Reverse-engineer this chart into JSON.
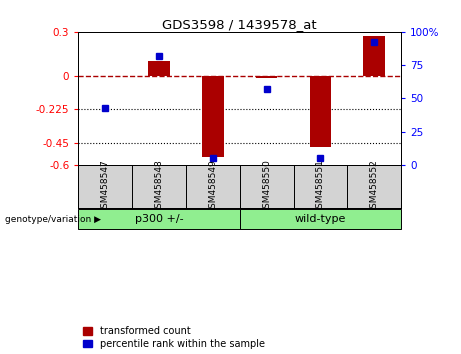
{
  "title": "GDS3598 / 1439578_at",
  "samples": [
    "GSM458547",
    "GSM458548",
    "GSM458549",
    "GSM458550",
    "GSM458551",
    "GSM458552"
  ],
  "transformed_counts": [
    0.0,
    0.1,
    -0.55,
    -0.01,
    -0.48,
    0.27
  ],
  "percentile_ranks": [
    43,
    82,
    5,
    57,
    5,
    92
  ],
  "ylim_left": [
    -0.6,
    0.3
  ],
  "ylim_right": [
    0,
    100
  ],
  "yticks_left": [
    -0.6,
    -0.45,
    -0.225,
    0,
    0.3
  ],
  "yticks_right": [
    0,
    25,
    50,
    75,
    100
  ],
  "ytick_labels_left": [
    "-0.6",
    "-0.45",
    "-0.225",
    "0",
    "0.3"
  ],
  "ytick_labels_right": [
    "0",
    "25",
    "50",
    "75",
    "100%"
  ],
  "hlines": [
    -0.225,
    -0.45
  ],
  "dashed_line_y": 0,
  "bar_color": "#AA0000",
  "dot_color": "#0000CC",
  "background_color": "#FFFFFF",
  "light_green": "#90EE90",
  "gray_box": "#D3D3D3",
  "label_transformed": "transformed count",
  "label_percentile": "percentile rank within the sample",
  "group_label": "genotype/variation",
  "groups": [
    {
      "label": "p300 +/-",
      "start": 0,
      "end": 2
    },
    {
      "label": "wild-type",
      "start": 3,
      "end": 5
    }
  ]
}
